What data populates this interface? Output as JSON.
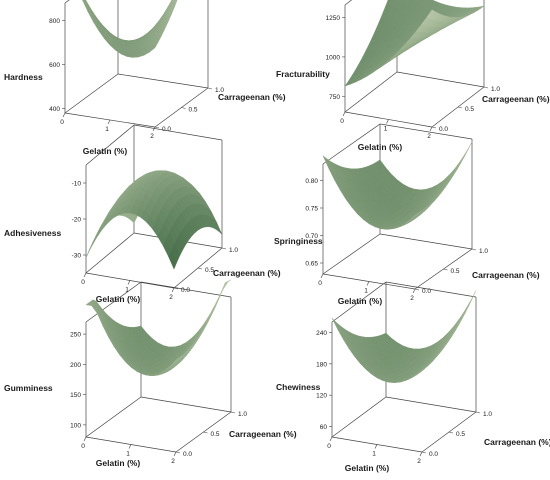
{
  "chart_data": [
    {
      "type": "surface",
      "title": "",
      "zlabel": "Hardness",
      "xlabel": "Gelatin (%)",
      "ylabel": "Carrageenan (%)",
      "xticks": [
        "0",
        "1",
        "2"
      ],
      "yticks": [
        "0.0",
        "0.5",
        "1.0"
      ],
      "zticks": [
        "400",
        "600",
        "800"
      ],
      "xlim": [
        0,
        2
      ],
      "ylim": [
        0,
        1
      ],
      "zlim": [
        380,
        880
      ],
      "surface_model": {
        "a": 640,
        "bx": 80,
        "by": -40,
        "qx": 200,
        "qy": 60,
        "xy": 260
      }
    },
    {
      "type": "surface",
      "title": "",
      "zlabel": "Fracturability",
      "xlabel": "Gelatin (%)",
      "ylabel": "Carrageenan (%)",
      "xticks": [
        "0",
        "1",
        "2"
      ],
      "yticks": [
        "0.0",
        "0.5",
        "1.0"
      ],
      "zticks": [
        "750",
        "1000",
        "1250"
      ],
      "xlim": [
        0,
        2
      ],
      "ylim": [
        0,
        1
      ],
      "zlim": [
        650,
        1330
      ],
      "surface_model": {
        "a": 1020,
        "bx": 120,
        "by": 110,
        "qx": 80,
        "qy": 60,
        "xy": -170
      }
    },
    {
      "type": "surface",
      "title": "",
      "zlabel": "Adhesiveness",
      "xlabel": "Gelatin (%)",
      "ylabel": "Carrageenan (%)",
      "xticks": [
        "0",
        "1",
        "2"
      ],
      "yticks": [
        "0.0",
        "0.5",
        "1.0"
      ],
      "zticks": [
        "-30",
        "-20",
        "-10"
      ],
      "xlim": [
        0,
        2
      ],
      "ylim": [
        0,
        1
      ],
      "zlim": [
        -35,
        -5
      ],
      "surface_model": {
        "a": -11,
        "bx": 0.5,
        "by": -1.5,
        "qx": -14,
        "qy": -6,
        "xy": 0
      }
    },
    {
      "type": "surface",
      "title": "",
      "zlabel": "Springiness",
      "xlabel": "Gelatin (%)",
      "ylabel": "Carrageenan (%)",
      "xticks": [
        "0",
        "1",
        "2"
      ],
      "yticks": [
        "0.0",
        "0.5",
        "1.0"
      ],
      "zticks": [
        "0.65",
        "0.70",
        "0.75",
        "0.80"
      ],
      "xlim": [
        0,
        2
      ],
      "ylim": [
        0,
        1
      ],
      "zlim": [
        0.63,
        0.83
      ],
      "surface_model": {
        "a": 0.71,
        "bx": -0.005,
        "by": -0.01,
        "qx": 0.07,
        "qy": 0.02,
        "xy": 0.035
      }
    },
    {
      "type": "surface",
      "title": "",
      "zlabel": "Gumminess",
      "xlabel": "Gelatin (%)",
      "ylabel": "Carrageenan (%)",
      "xticks": [
        "0",
        "1",
        "2"
      ],
      "yticks": [
        "0.0",
        "0.5",
        "1.0"
      ],
      "zticks": [
        "100",
        "150",
        "200",
        "250"
      ],
      "xlim": [
        0,
        2
      ],
      "ylim": [
        0,
        1
      ],
      "zlim": [
        80,
        270
      ],
      "surface_model": {
        "a": 170,
        "bx": 5,
        "by": -25,
        "qx": 75,
        "qy": 25,
        "xy": 55
      }
    },
    {
      "type": "surface",
      "title": "",
      "zlabel": "Chewiness",
      "xlabel": "Gelatin (%)",
      "ylabel": "Carrageenan (%)",
      "xticks": [
        "0",
        "1",
        "2"
      ],
      "yticks": [
        "0.0",
        "0.5",
        "1.0"
      ],
      "zticks": [
        "60",
        "120",
        "180",
        "240"
      ],
      "xlim": [
        0,
        2
      ],
      "ylim": [
        0,
        1
      ],
      "zlim": [
        40,
        260
      ],
      "surface_model": {
        "a": 140,
        "bx": 10,
        "by": -15,
        "qx": 65,
        "qy": 20,
        "xy": 45
      }
    }
  ]
}
